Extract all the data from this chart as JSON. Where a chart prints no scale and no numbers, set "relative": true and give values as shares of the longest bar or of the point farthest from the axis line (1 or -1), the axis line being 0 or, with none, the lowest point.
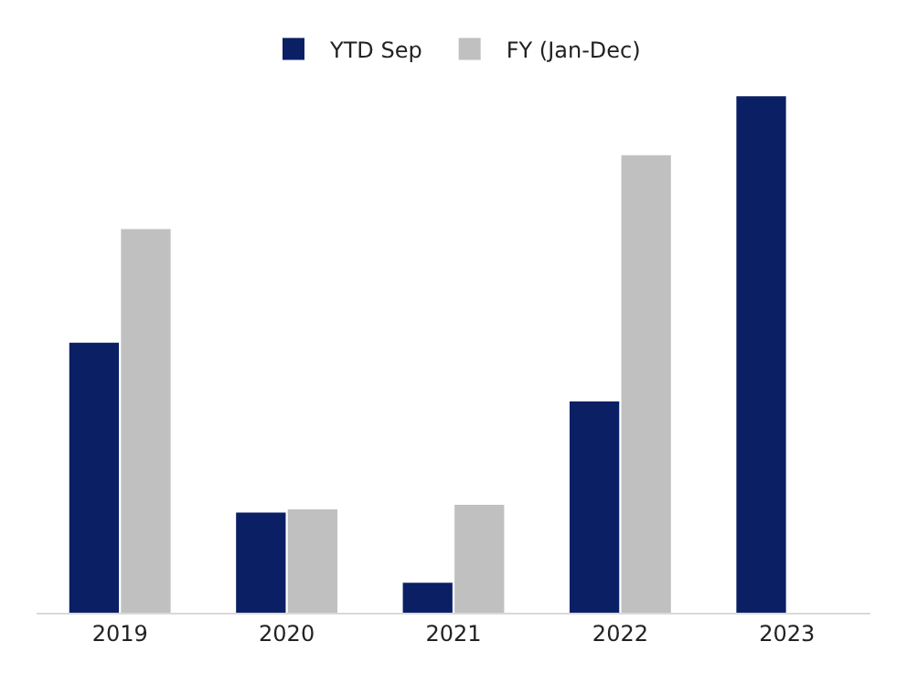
{
  "chart_data": {
    "type": "bar",
    "relative": true,
    "categories": [
      "2019",
      "2020",
      "2021",
      "2022",
      "2023"
    ],
    "series": [
      {
        "name": "YTD Sep",
        "color": "#0b1f65",
        "values": [
          0.523,
          0.194,
          0.058,
          0.409,
          1
        ]
      },
      {
        "name": "FY (Jan-Dec)",
        "color": "#c0c0c0",
        "values": [
          0.743,
          0.2,
          0.209,
          0.886,
          null
        ]
      }
    ],
    "legend": "top"
  }
}
